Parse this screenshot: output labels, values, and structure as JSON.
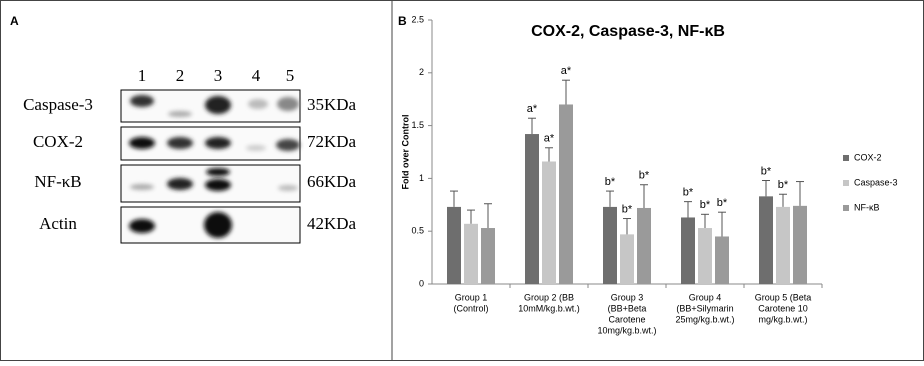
{
  "blot": {
    "panel_label": "A",
    "lanes": [
      "1",
      "2",
      "3",
      "4",
      "5"
    ],
    "rows": [
      {
        "protein": "Caspase-3",
        "size": "35KDa"
      },
      {
        "protein": "COX-2",
        "size": "72KDa"
      },
      {
        "protein": "NF-κB",
        "size": "66KDa"
      },
      {
        "protein": "Actin",
        "size": "42KDa"
      }
    ]
  },
  "chart_data": {
    "type": "bar",
    "panel_label": "B",
    "title": "COX-2, Caspase-3, NF-κB",
    "y_label": "Fold over Control",
    "categories": [
      [
        "Group 1",
        "(Control)"
      ],
      [
        "Group 2 (BB",
        "10mM/kg.b.wt.)"
      ],
      [
        "Group 3",
        "(BB+Beta",
        "Carotene",
        "10mg/kg.b.wt.)"
      ],
      [
        "Group 4",
        "(BB+Silymarin",
        "25mg/kg.b.wt.)"
      ],
      [
        "Group 5 (Beta",
        "Carotene 10",
        "mg/kg.b.wt.)"
      ]
    ],
    "series": [
      {
        "name": "COX-2",
        "color": "#6e6e6e",
        "values": [
          0.73,
          1.42,
          0.73,
          0.63,
          0.83
        ],
        "errors": [
          0.15,
          0.15,
          0.15,
          0.15,
          0.15
        ],
        "labels": [
          null,
          "a*",
          "b*",
          "b*",
          "b*"
        ]
      },
      {
        "name": "Caspase-3",
        "color": "#c6c6c6",
        "values": [
          0.57,
          1.16,
          0.47,
          0.53,
          0.73
        ],
        "errors": [
          0.13,
          0.13,
          0.15,
          0.13,
          0.12
        ],
        "labels": [
          null,
          "a*",
          "b*",
          "b*",
          "b*"
        ]
      },
      {
        "name": "NF-κB",
        "color": "#9a9a9a",
        "values": [
          0.53,
          1.7,
          0.72,
          0.45,
          0.74
        ],
        "errors": [
          0.23,
          0.23,
          0.22,
          0.23,
          0.23
        ],
        "labels": [
          null,
          "a*",
          "b*",
          "b*",
          null
        ]
      }
    ],
    "ylim": [
      0,
      2.5
    ],
    "yticks": [
      0,
      0.5,
      1,
      1.5,
      2,
      2.5
    ],
    "legend": "right"
  }
}
